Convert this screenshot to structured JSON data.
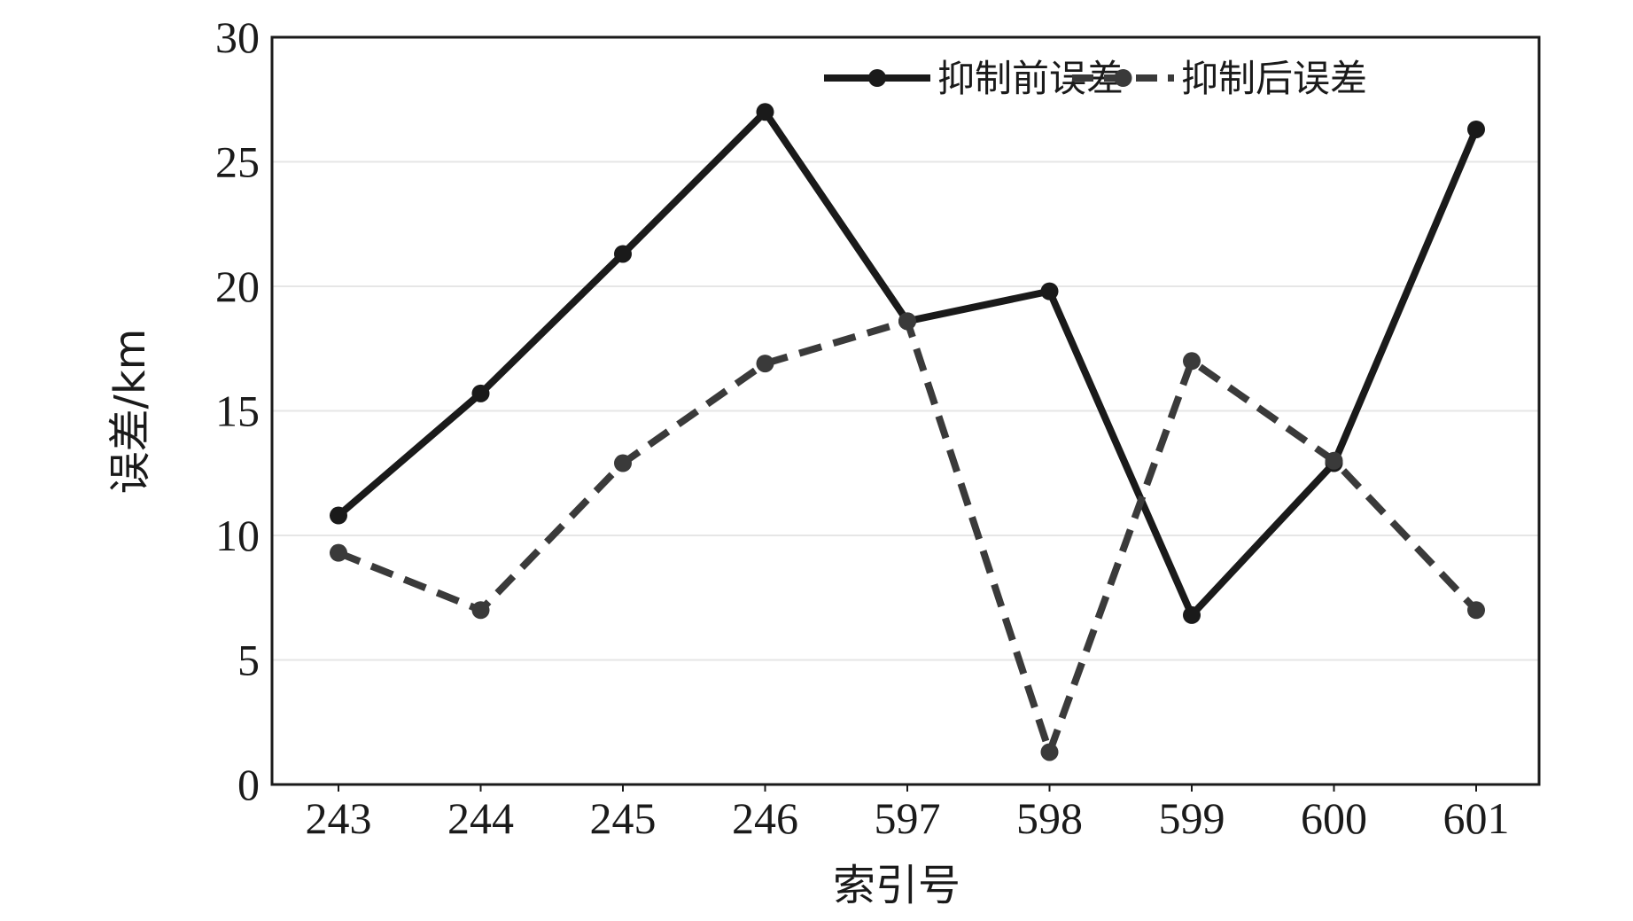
{
  "chart_data": {
    "type": "line",
    "xlabel": "索引号",
    "ylabel": "误差/km",
    "categories": [
      "243",
      "244",
      "245",
      "246",
      "597",
      "598",
      "599",
      "600",
      "601"
    ],
    "ylim": [
      0,
      30
    ],
    "yticks": [
      "0",
      "5",
      "10",
      "15",
      "20",
      "25",
      "30"
    ],
    "grid": "horizontal",
    "legend_position": "top-right",
    "series": [
      {
        "name": "抑制前误差",
        "style": "solid",
        "color": "#1a1a1a",
        "values": [
          10.8,
          15.7,
          21.3,
          27.0,
          18.6,
          19.8,
          6.8,
          12.9,
          26.3
        ]
      },
      {
        "name": "抑制后误差",
        "style": "dashed",
        "color": "#3a3a3a",
        "values": [
          9.3,
          7.0,
          12.9,
          16.9,
          18.6,
          1.3,
          17.0,
          13.0,
          7.0
        ]
      }
    ]
  }
}
